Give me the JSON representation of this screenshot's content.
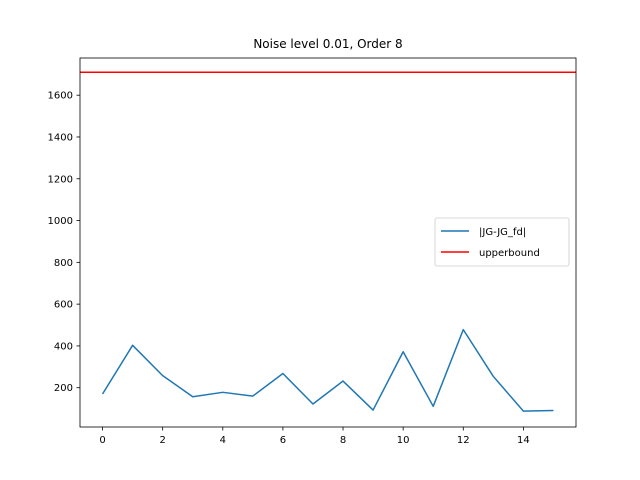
{
  "chart_data": {
    "type": "line",
    "title": "Noise level 0.01, Order 8",
    "xlabel": "",
    "ylabel": "",
    "xlim": [
      -0.75,
      15.75
    ],
    "ylim": [
      12,
      1778
    ],
    "x_ticks": [
      0,
      2,
      4,
      6,
      8,
      10,
      12,
      14
    ],
    "x_tick_labels": [
      "0",
      "2",
      "4",
      "6",
      "8",
      "10",
      "12",
      "14"
    ],
    "y_ticks": [
      200,
      400,
      600,
      800,
      1000,
      1200,
      1400,
      1600
    ],
    "y_tick_labels": [
      "200",
      "400",
      "600",
      "800",
      "1000",
      "1200",
      "1400",
      "1600"
    ],
    "grid": false,
    "legend_position": "center-right",
    "series": [
      {
        "name": "|JG-JG_fd|",
        "color": "#1f77b4",
        "x": [
          0,
          1,
          2,
          3,
          4,
          5,
          6,
          7,
          8,
          9,
          10,
          11,
          12,
          13,
          14,
          15
        ],
        "values": [
          170,
          403,
          258,
          157,
          178,
          160,
          268,
          122,
          232,
          93,
          372,
          111,
          478,
          254,
          88,
          91
        ]
      }
    ],
    "hlines": [
      {
        "name": "upperbound",
        "color": "#ff0000",
        "y": 1710
      }
    ]
  }
}
